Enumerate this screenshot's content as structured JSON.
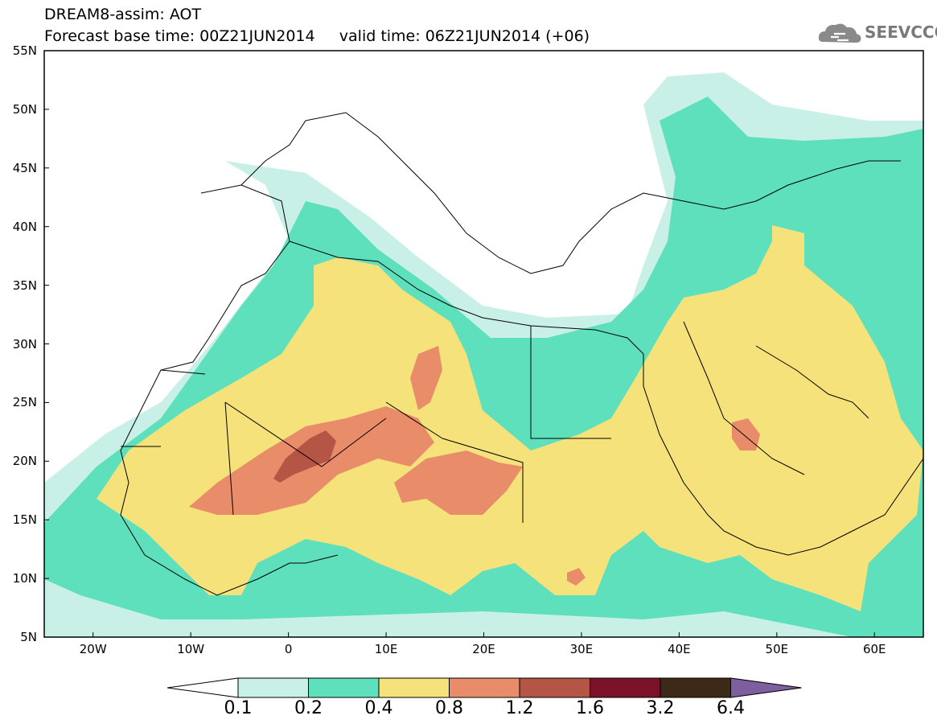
{
  "header": {
    "title_line1": "DREAM8-assim: AOT",
    "title_line2": "Forecast base time: 00Z21JUN2014     valid time: 06Z21JUN2014 (+06)"
  },
  "logo": {
    "text": "SEEVCCC",
    "icon": "cloud-icon"
  },
  "map": {
    "lat_labels": [
      "55N",
      "50N",
      "45N",
      "40N",
      "35N",
      "30N",
      "25N",
      "20N",
      "15N",
      "10N",
      "5N"
    ],
    "lon_labels": [
      "20W",
      "10W",
      "0",
      "10E",
      "20E",
      "30E",
      "40E",
      "50E",
      "60E"
    ],
    "lat_range": [
      5,
      55
    ],
    "lon_range": [
      -25,
      65
    ],
    "land_color": "#ffffff",
    "border_color": "#000000"
  },
  "colorbar": {
    "levels": [
      "0.1",
      "0.2",
      "0.4",
      "0.8",
      "1.2",
      "1.6",
      "3.2",
      "6.4"
    ],
    "colors": [
      "#ffffff",
      "#c8f0e6",
      "#5ee0bc",
      "#f5e27a",
      "#e88c6a",
      "#b55545",
      "#7a1228",
      "#3e2818",
      "#7d5fa0"
    ]
  }
}
